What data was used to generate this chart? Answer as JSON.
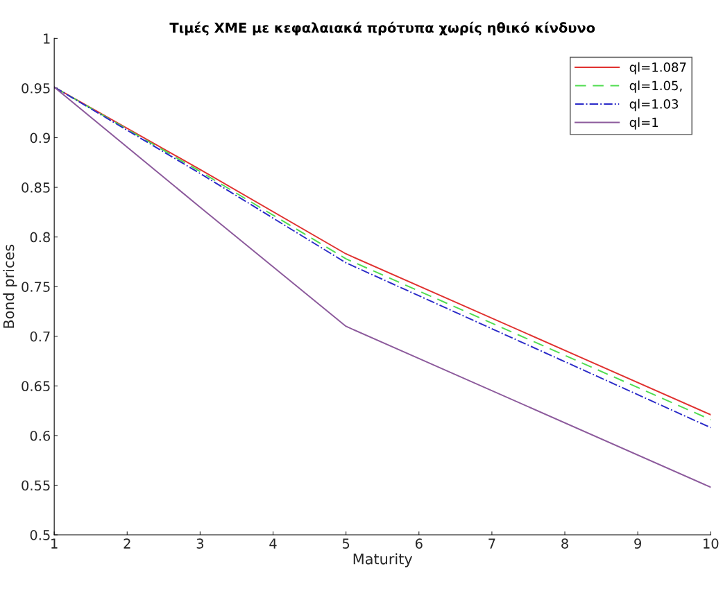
{
  "chart_data": {
    "type": "line",
    "title": "Τιμές ΧΜΕ με κεφαλαιακά πρότυπα χωρίς ηθικό κίνδυνο",
    "xlabel": "Maturity",
    "ylabel": "Bond prices",
    "x": [
      1,
      3,
      5,
      10
    ],
    "series": [
      {
        "name": "ql=1.087",
        "color": "#e0312f",
        "line_style": "solid",
        "values": [
          0.951,
          0.868,
          0.783,
          0.621
        ]
      },
      {
        "name": "ql=1.05,",
        "color": "#4fdc4f",
        "line_style": "dashed",
        "values": [
          0.951,
          0.866,
          0.778,
          0.616
        ]
      },
      {
        "name": "ql=1.03",
        "color": "#2a2ac8",
        "line_style": "dashdot",
        "values": [
          0.951,
          0.864,
          0.774,
          0.608
        ]
      },
      {
        "name": "ql=1",
        "color": "#8c5a9c",
        "line_style": "solid",
        "values": [
          0.951,
          0.83,
          0.71,
          0.548
        ]
      }
    ],
    "xlim": [
      1,
      10
    ],
    "xticks": [
      1,
      2,
      3,
      4,
      5,
      6,
      7,
      8,
      9,
      10
    ],
    "ylim": [
      0.5,
      1
    ],
    "yticks": [
      0.5,
      0.55,
      0.6,
      0.65,
      0.7,
      0.75,
      0.8,
      0.85,
      0.9,
      0.95,
      1
    ],
    "grid": false,
    "legend": "top right",
    "marker": "none"
  }
}
